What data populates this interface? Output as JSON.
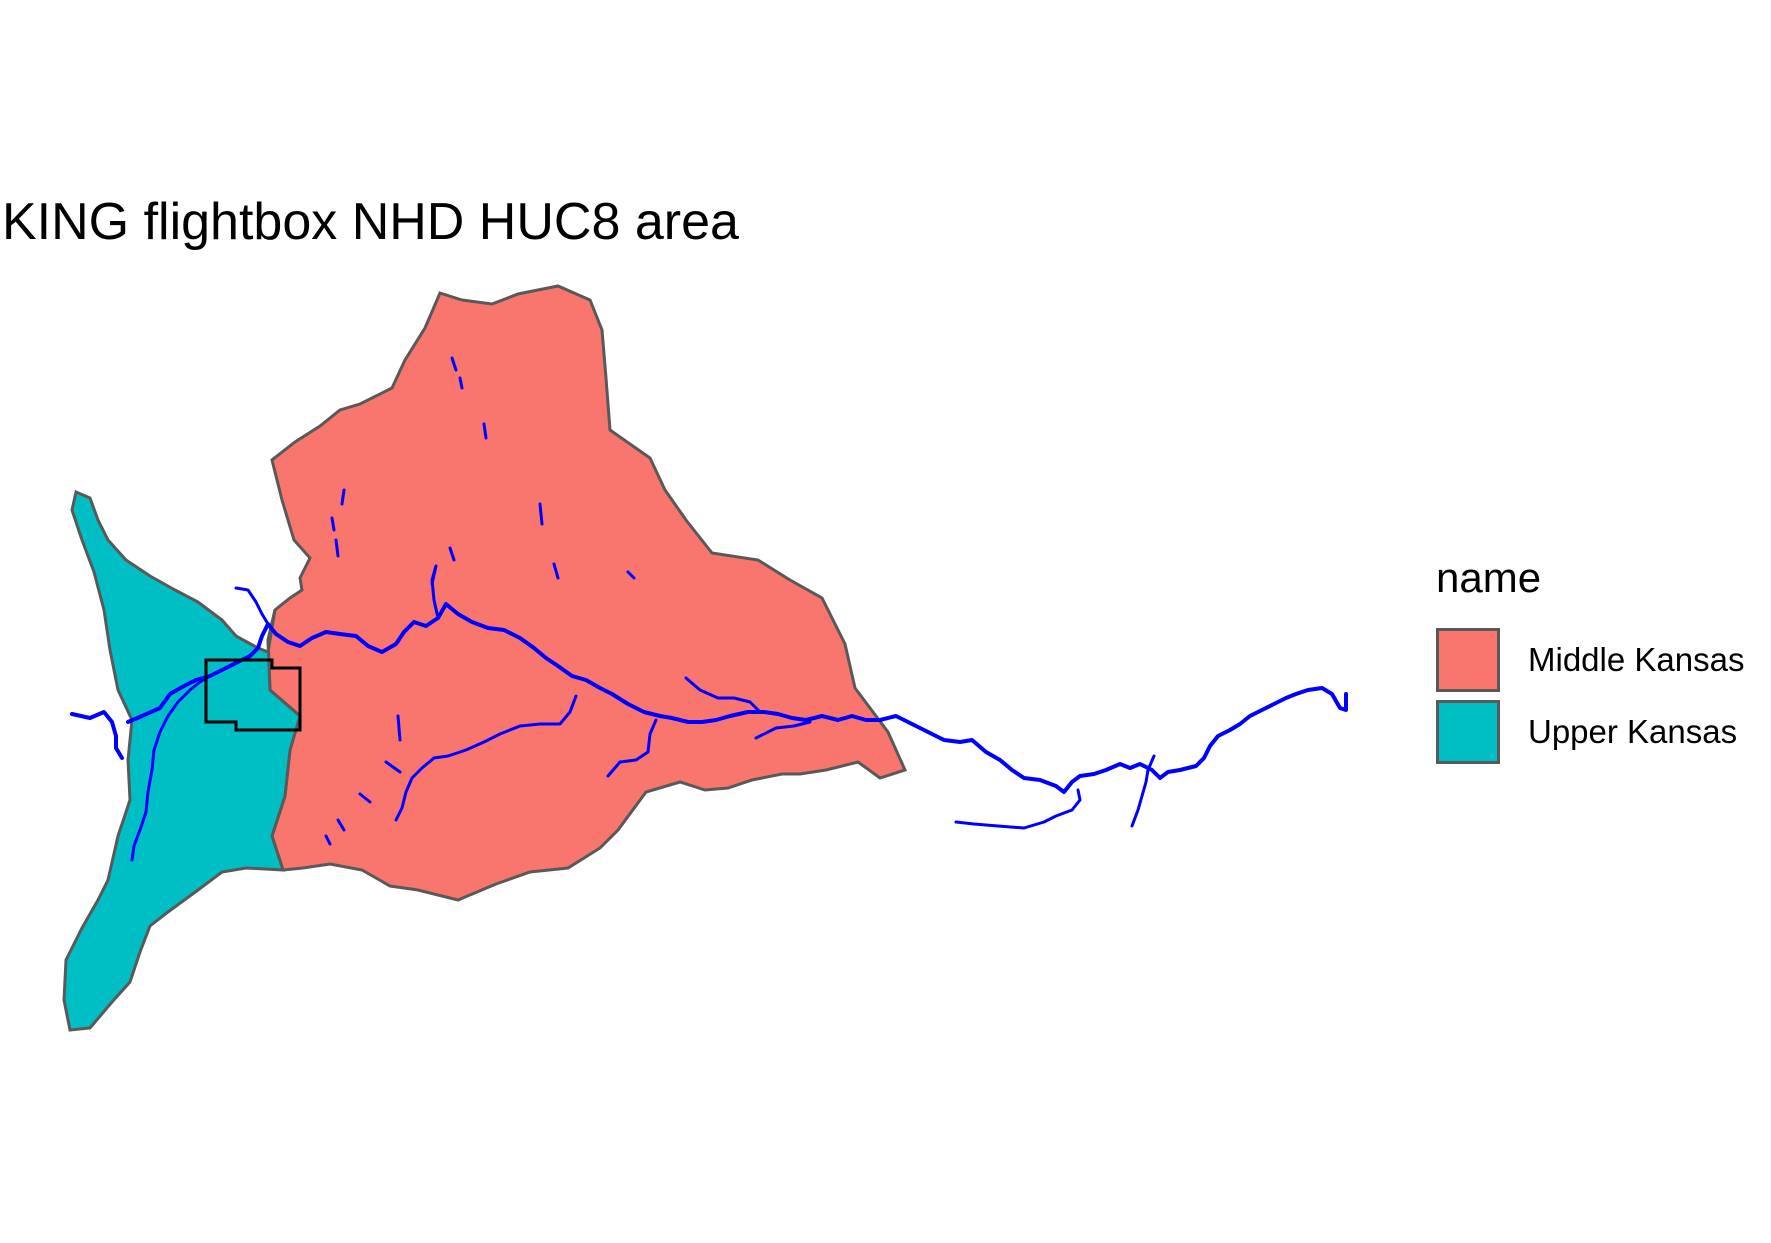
{
  "title": "KING flightbox NHD HUC8 area",
  "legend": {
    "title": "name",
    "items": [
      {
        "label": "Middle Kansas",
        "color": "#F8766D"
      },
      {
        "label": "Upper Kansas",
        "color": "#00BFC4"
      }
    ]
  },
  "styles": {
    "boundary_color": "#595959",
    "flowline_color": "#0000FF",
    "flightbox_color": "#000000"
  }
}
